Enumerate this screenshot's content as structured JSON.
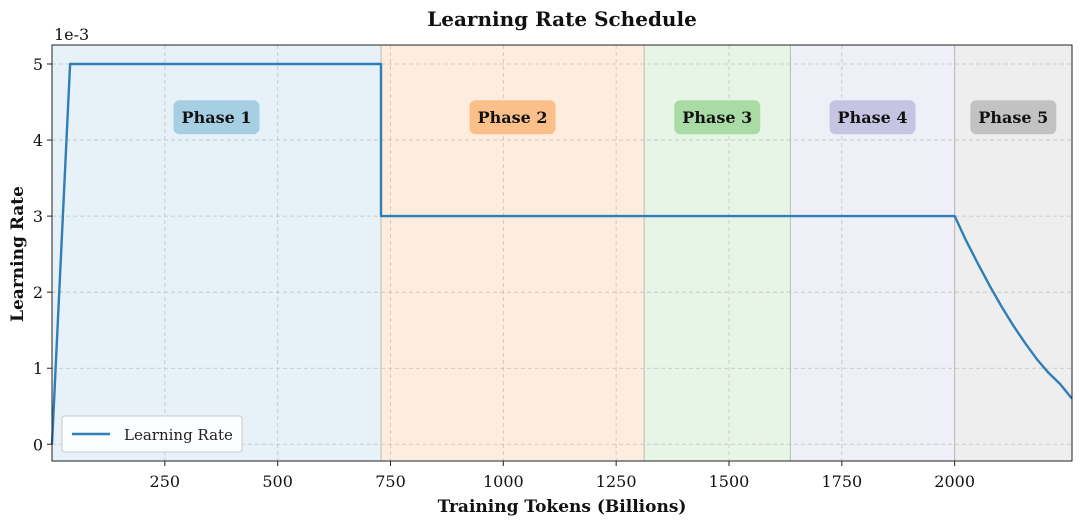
{
  "chart_data": {
    "type": "line",
    "title": "Learning Rate Schedule",
    "xlabel": "Training Tokens (Billions)",
    "ylabel": "Learning Rate",
    "y_scale_label": "1e-3",
    "xlim": [
      0,
      2260
    ],
    "ylim": [
      -0.22,
      5.25
    ],
    "x_ticks": [
      250,
      500,
      750,
      1000,
      1250,
      1500,
      1750,
      2000
    ],
    "y_ticks": [
      0,
      1,
      2,
      3,
      4,
      5
    ],
    "grid": true,
    "legend_position": "lower-left",
    "phases": [
      {
        "label": "Phase 1",
        "start": 0,
        "end": 729,
        "color": "#a6cfe4"
      },
      {
        "label": "Phase 2",
        "start": 729,
        "end": 1312,
        "color": "#fbbf8a"
      },
      {
        "label": "Phase 3",
        "start": 1312,
        "end": 1636,
        "color": "#a9dca4"
      },
      {
        "label": "Phase 4",
        "start": 1636,
        "end": 2000,
        "color": "#c6c4e2"
      },
      {
        "label": "Phase 5",
        "start": 2000,
        "end": 2260,
        "color": "#c2c2c2"
      }
    ],
    "series": [
      {
        "name": "Learning Rate",
        "color": "#2e7eb8",
        "x": [
          0,
          40,
          729,
          729,
          1312,
          1636,
          2000,
          2026,
          2052,
          2078,
          2104,
          2130,
          2156,
          2182,
          2208,
          2234,
          2260
        ],
        "y": [
          0,
          5,
          5,
          3,
          3,
          3,
          3,
          2.67,
          2.37,
          2.08,
          1.81,
          1.56,
          1.33,
          1.12,
          0.94,
          0.79,
          0.6
        ]
      }
    ]
  }
}
